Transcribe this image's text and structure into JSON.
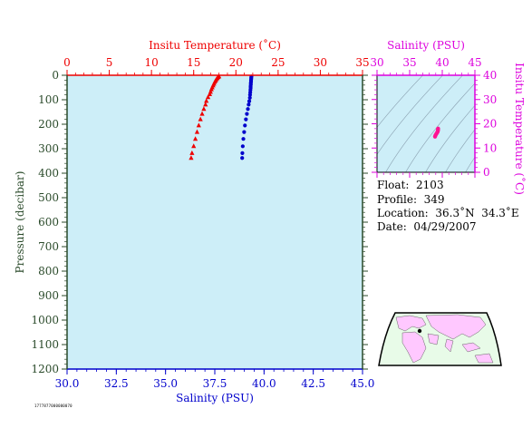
{
  "colors": {
    "plot_bg": "#cdeef8",
    "temperature": "#ee0000",
    "salinity": "#0000cc",
    "magenta": "#dd00dd",
    "pressure_axis": "#2a4a2a",
    "ts_points": "#ff1493",
    "land": "#ffc8ff",
    "ocean": "#e8fbe8"
  },
  "info": {
    "float": "Float:  2103",
    "profile": "Profile:  349",
    "location": "Location:  36.3˚N  34.3˚E",
    "date": "Date:  04/29/2007"
  },
  "footer_stamp": "1777877000000070",
  "chart_data": [
    {
      "type": "scatter",
      "title": "",
      "x_top_label": "Insitu Temperature (˚C)",
      "x_top_range": [
        0,
        35
      ],
      "x_top_ticks": [
        "0",
        "5",
        "10",
        "15",
        "20",
        "25",
        "30",
        "35"
      ],
      "x_bottom_label": "Salinity (PSU)",
      "x_bottom_range": [
        30,
        45
      ],
      "x_bottom_ticks": [
        "30.0",
        "32.5",
        "35.0",
        "37.5",
        "40.0",
        "42.5",
        "45.0"
      ],
      "ylabel": "Pressure (decibar)",
      "ylim": [
        1200,
        0
      ],
      "y_ticks": [
        "0",
        "100",
        "200",
        "300",
        "400",
        "500",
        "600",
        "700",
        "800",
        "900",
        "1000",
        "1100",
        "1200"
      ],
      "grid": false,
      "series": [
        {
          "key": "temperature",
          "marker": "triangle",
          "points": [
            [
              18.0,
              5
            ],
            [
              17.9,
              8
            ],
            [
              17.8,
              12
            ],
            [
              17.7,
              16
            ],
            [
              17.6,
              22
            ],
            [
              17.5,
              28
            ],
            [
              17.4,
              35
            ],
            [
              17.3,
              42
            ],
            [
              17.2,
              50
            ],
            [
              17.1,
              58
            ],
            [
              17.0,
              68
            ],
            [
              16.9,
              78
            ],
            [
              16.7,
              90
            ],
            [
              16.5,
              105
            ],
            [
              16.4,
              120
            ],
            [
              16.2,
              138
            ],
            [
              16.0,
              158
            ],
            [
              15.8,
              180
            ],
            [
              15.6,
              205
            ],
            [
              15.4,
              232
            ],
            [
              15.2,
              260
            ],
            [
              15.0,
              290
            ],
            [
              14.8,
              318
            ],
            [
              14.7,
              338
            ]
          ]
        },
        {
          "key": "salinity",
          "marker": "circle",
          "points": [
            [
              39.36,
              5
            ],
            [
              39.35,
              10
            ],
            [
              39.35,
              15
            ],
            [
              39.34,
              20
            ],
            [
              39.34,
              26
            ],
            [
              39.33,
              32
            ],
            [
              39.33,
              38
            ],
            [
              39.32,
              45
            ],
            [
              39.32,
              52
            ],
            [
              39.31,
              60
            ],
            [
              39.3,
              70
            ],
            [
              39.29,
              80
            ],
            [
              39.28,
              92
            ],
            [
              39.25,
              106
            ],
            [
              39.22,
              120
            ],
            [
              39.18,
              138
            ],
            [
              39.13,
              158
            ],
            [
              39.08,
              180
            ],
            [
              39.03,
              205
            ],
            [
              38.99,
              232
            ],
            [
              38.95,
              260
            ],
            [
              38.92,
              290
            ],
            [
              38.9,
              318
            ],
            [
              38.89,
              338
            ]
          ]
        }
      ]
    },
    {
      "type": "scatter",
      "title": "",
      "xlabel": "Salinity (PSU)",
      "xlim": [
        30,
        45
      ],
      "x_ticks": [
        "30",
        "35",
        "40",
        "45"
      ],
      "ylabel": "Insitu Temperature (˚C)",
      "ylim": [
        0,
        40
      ],
      "y_ticks": [
        "0",
        "10",
        "20",
        "30",
        "40"
      ],
      "grid": false,
      "series": [
        {
          "key": "ts",
          "marker": "circle",
          "points": [
            [
              39.36,
              18.0
            ],
            [
              39.34,
              17.6
            ],
            [
              39.33,
              17.3
            ],
            [
              39.31,
              17.0
            ],
            [
              39.28,
              16.7
            ],
            [
              39.22,
              16.4
            ],
            [
              39.13,
              16.0
            ],
            [
              39.03,
              15.6
            ],
            [
              38.95,
              15.2
            ],
            [
              38.89,
              14.7
            ]
          ]
        }
      ]
    }
  ]
}
